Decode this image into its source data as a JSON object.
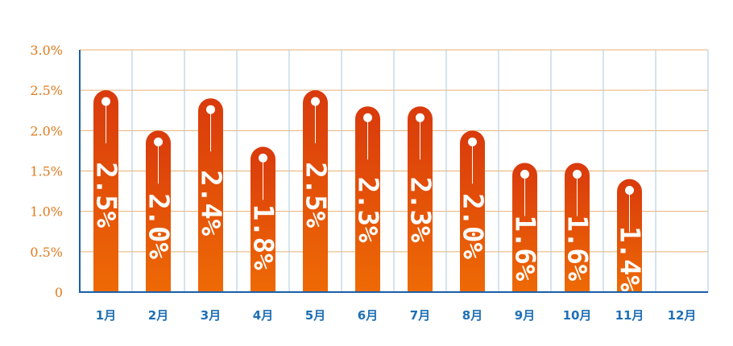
{
  "chart_data": {
    "type": "bar",
    "categories": [
      "1月",
      "2月",
      "3月",
      "4月",
      "5月",
      "6月",
      "7月",
      "8月",
      "9月",
      "10月",
      "11月",
      "12月"
    ],
    "values": [
      2.5,
      2.0,
      2.4,
      1.8,
      2.5,
      2.3,
      2.3,
      2.0,
      1.6,
      1.6,
      1.4,
      null
    ],
    "data_labels": [
      "2.5%",
      "2.0%",
      "2.4%",
      "1.8%",
      "2.5%",
      "2.3%",
      "2.3%",
      "2.0%",
      "1.6%",
      "1.6%",
      "1.4%",
      ""
    ],
    "y_ticks": [
      "0",
      "0.5%",
      "1.0%",
      "1.5%",
      "2.0%",
      "2.5%",
      "3.0%"
    ],
    "ylim": [
      0,
      3.0
    ],
    "grid": true,
    "colors": {
      "bar_top": "#d93a0c",
      "bar_bottom": "#ee6a05",
      "axis": "#1a5fa8",
      "grid_h": "#e8b070",
      "grid_v": "#a9c9e0",
      "y_tick_text": "#e07a1c",
      "x_tick_text": "#1f6fb5"
    }
  }
}
